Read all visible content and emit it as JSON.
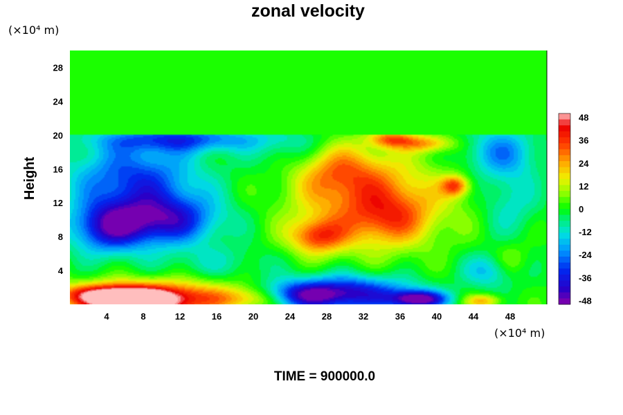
{
  "chart_data": {
    "type": "heatmap",
    "title": "zonal velocity",
    "xlabel": "",
    "ylabel": "Height",
    "x_unit": "(×10⁴ m)",
    "y_unit": "(×10⁴ m)",
    "footer": "TIME = 900000.0",
    "xlim": [
      0,
      52
    ],
    "ylim": [
      0,
      30
    ],
    "x_ticks": [
      4,
      8,
      12,
      16,
      20,
      24,
      28,
      32,
      36,
      40,
      44,
      48
    ],
    "x_tick_labels": [
      "4",
      "8",
      "12",
      "16",
      "20",
      "24",
      "28",
      "32",
      "36",
      "40",
      "44",
      "48"
    ],
    "y_ticks": [
      4,
      8,
      12,
      16,
      20,
      24,
      28
    ],
    "y_tick_labels": [
      "4",
      "8",
      "12",
      "16",
      "20",
      "24",
      "28"
    ],
    "colorbar": {
      "min": -50,
      "max": 50,
      "ticks": [
        48,
        36,
        24,
        12,
        0,
        -12,
        -24,
        -36,
        -48
      ],
      "tick_labels": [
        "48",
        "36",
        "24",
        "12",
        "0",
        "-12",
        "-24",
        "-36",
        "-48"
      ]
    },
    "grid": false,
    "sponge_layer_top": 20,
    "sponge_layer_value": 0,
    "field_features": [
      {
        "x": 7,
        "y": 0.3,
        "value": 50,
        "rx": 5,
        "ry": 1.5
      },
      {
        "x": 10,
        "y": 0.8,
        "value": 35,
        "rx": 9,
        "ry": 2
      },
      {
        "x": 3,
        "y": 1.2,
        "value": 25,
        "rx": 5,
        "ry": 1.2
      },
      {
        "x": 20,
        "y": 0.7,
        "value": 15,
        "rx": 4,
        "ry": 1.2
      },
      {
        "x": 10,
        "y": 10,
        "value": -40,
        "rx": 6,
        "ry": 3
      },
      {
        "x": 4,
        "y": 9,
        "value": -32,
        "rx": 4,
        "ry": 3
      },
      {
        "x": 7,
        "y": 15,
        "value": -30,
        "rx": 7,
        "ry": 4
      },
      {
        "x": 12,
        "y": 19.5,
        "value": -28,
        "rx": 9,
        "ry": 1.5
      },
      {
        "x": 24,
        "y": 18,
        "value": -10,
        "rx": 4,
        "ry": 3
      },
      {
        "x": 33,
        "y": 12,
        "value": 30,
        "rx": 8,
        "ry": 5
      },
      {
        "x": 29,
        "y": 16,
        "value": 20,
        "rx": 5,
        "ry": 3
      },
      {
        "x": 27,
        "y": 8,
        "value": 30,
        "rx": 3,
        "ry": 2
      },
      {
        "x": 35,
        "y": 10,
        "value": 14,
        "rx": 4,
        "ry": 3
      },
      {
        "x": 35,
        "y": 19.5,
        "value": 28,
        "rx": 2.5,
        "ry": 1
      },
      {
        "x": 42,
        "y": 14,
        "value": 30,
        "rx": 1.5,
        "ry": 1.2
      },
      {
        "x": 39,
        "y": 19,
        "value": 22,
        "rx": 3,
        "ry": 1
      },
      {
        "x": 30,
        "y": 1.3,
        "value": -42,
        "rx": 7,
        "ry": 2
      },
      {
        "x": 38,
        "y": 0.6,
        "value": -48,
        "rx": 3,
        "ry": 1
      },
      {
        "x": 25,
        "y": 1,
        "value": -24,
        "rx": 4,
        "ry": 1.5
      },
      {
        "x": 47,
        "y": 18,
        "value": -22,
        "rx": 4,
        "ry": 3
      },
      {
        "x": 48,
        "y": 12,
        "value": -12,
        "rx": 3,
        "ry": 4
      },
      {
        "x": 46,
        "y": 4,
        "value": -18,
        "rx": 3,
        "ry": 2
      },
      {
        "x": 48,
        "y": 5,
        "value": 12,
        "rx": 2,
        "ry": 2
      },
      {
        "x": 45,
        "y": 0.4,
        "value": 22,
        "rx": 2,
        "ry": 0.8
      },
      {
        "x": 16,
        "y": 5,
        "value": -8,
        "rx": 6,
        "ry": 2
      }
    ]
  }
}
